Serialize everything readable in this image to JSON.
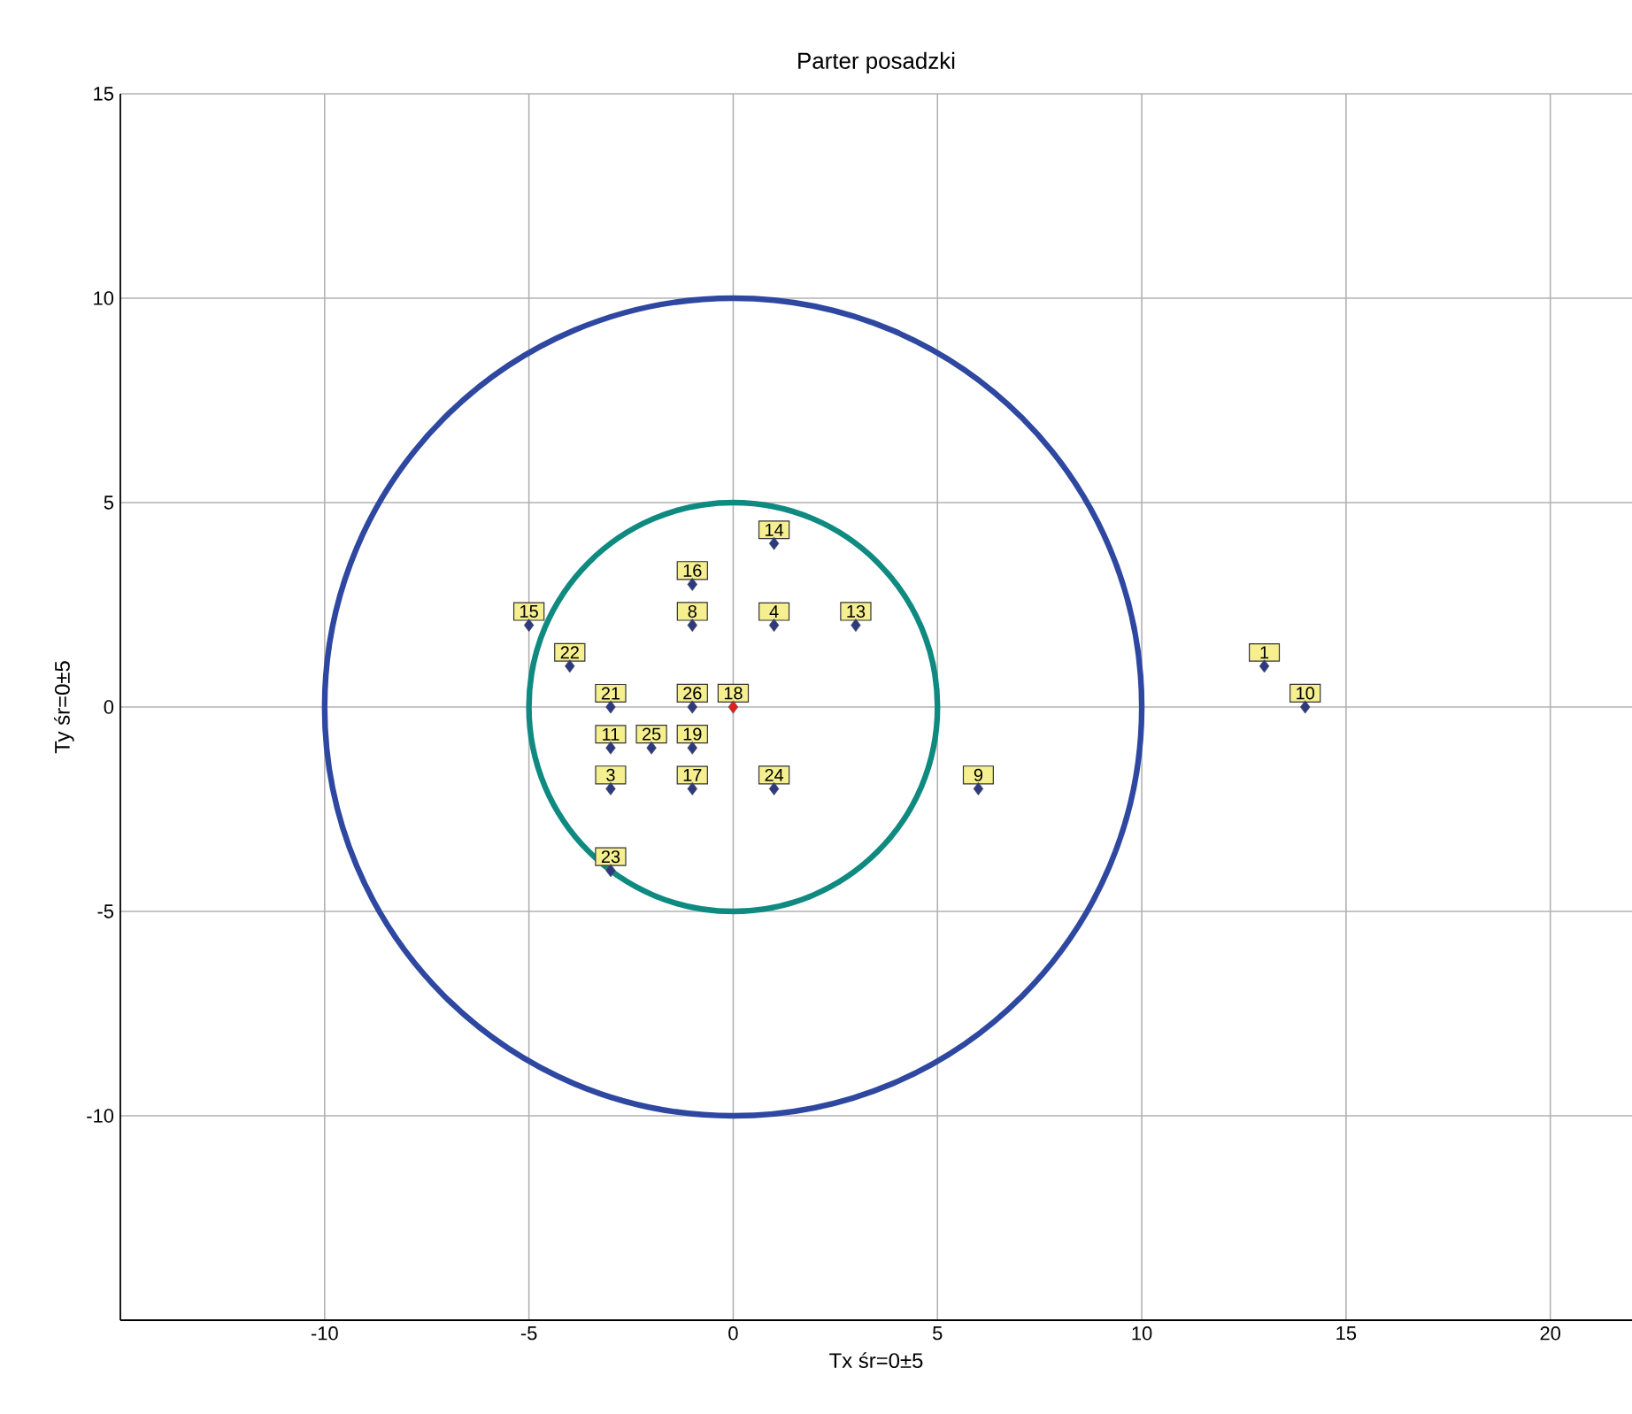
{
  "chart_data": {
    "type": "scatter",
    "title": "Parter posadzki",
    "xlabel": "Tx śr=0±5",
    "ylabel": "Ty śr=0±5",
    "xlim": [
      -15,
      22
    ],
    "ylim": [
      -15,
      15
    ],
    "xticks": [
      -10,
      -5,
      0,
      5,
      10,
      15,
      20
    ],
    "yticks": [
      -10,
      -5,
      0,
      5,
      10,
      15
    ],
    "grid": true,
    "series": [
      {
        "marker": "diamond",
        "x": [
          1,
          -1,
          -5,
          -1,
          1,
          3,
          -4,
          13,
          14,
          -3,
          -1,
          0,
          -3,
          -2,
          -1,
          -3,
          -1,
          1,
          6,
          -3
        ],
        "values": [
          4,
          3,
          2,
          2,
          2,
          2,
          1,
          1,
          0,
          0,
          0,
          0,
          -1,
          -1,
          -1,
          -2,
          -2,
          -2,
          -2,
          -4
        ],
        "colors": [
          "#2e3a80",
          "#2e3a80",
          "#2e3a80",
          "#2e3a80",
          "#2e3a80",
          "#2e3a80",
          "#2e3a80",
          "#2e3a80",
          "#2e3a80",
          "#2e3a80",
          "#2e3a80",
          "#e02020",
          "#2e3a80",
          "#2e3a80",
          "#2e3a80",
          "#2e3a80",
          "#2e3a80",
          "#2e3a80",
          "#2e3a80",
          "#2e3a80"
        ]
      }
    ],
    "annotations": [
      {
        "text": "14",
        "x": 1,
        "y": 4
      },
      {
        "text": "16",
        "x": -1,
        "y": 3
      },
      {
        "text": "15",
        "x": -5,
        "y": 2
      },
      {
        "text": "8",
        "x": -1,
        "y": 2
      },
      {
        "text": "4",
        "x": 1,
        "y": 2
      },
      {
        "text": "13",
        "x": 3,
        "y": 2
      },
      {
        "text": "22",
        "x": -4,
        "y": 1
      },
      {
        "text": "1",
        "x": 13,
        "y": 1
      },
      {
        "text": "10",
        "x": 14,
        "y": 0
      },
      {
        "text": "21",
        "x": -3,
        "y": 0
      },
      {
        "text": "26",
        "x": -1,
        "y": 0
      },
      {
        "text": "18",
        "x": 0,
        "y": 0
      },
      {
        "text": "11",
        "x": -3,
        "y": -1
      },
      {
        "text": "25",
        "x": -2,
        "y": -1
      },
      {
        "text": "19",
        "x": -1,
        "y": -1
      },
      {
        "text": "3",
        "x": -3,
        "y": -2
      },
      {
        "text": "17",
        "x": -1,
        "y": -2
      },
      {
        "text": "24",
        "x": 1,
        "y": -2
      },
      {
        "text": "9",
        "x": 6,
        "y": -2
      },
      {
        "text": "23",
        "x": -3,
        "y": -4
      }
    ]
  }
}
